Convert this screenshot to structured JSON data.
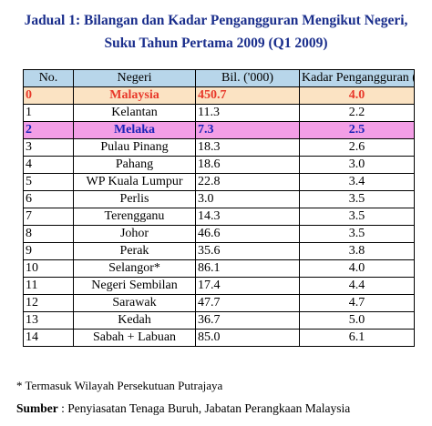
{
  "title": {
    "line1": "Jadual 1: Bilangan dan Kadar Pengangguran Mengikut Negeri,",
    "line2": "Suku Tahun Pertama  2009 (Q1 2009)"
  },
  "table": {
    "headers": [
      "No.",
      "Negeri",
      "Bil. ('000)",
      "Kadar Pengangguran (%)"
    ],
    "rows": [
      {
        "no": "0",
        "negeri": "Malaysia",
        "bil": "450.7",
        "kadar": "4.0",
        "highlight": "malaysia"
      },
      {
        "no": "1",
        "negeri": "Kelantan",
        "bil": "11.3",
        "kadar": "2.2",
        "highlight": ""
      },
      {
        "no": "2",
        "negeri": "Melaka",
        "bil": "7.3",
        "kadar": "2.5",
        "highlight": "melaka"
      },
      {
        "no": "3",
        "negeri": "Pulau Pinang",
        "bil": "18.3",
        "kadar": "2.6",
        "highlight": ""
      },
      {
        "no": "4",
        "negeri": "Pahang",
        "bil": "18.6",
        "kadar": "3.0",
        "highlight": ""
      },
      {
        "no": "5",
        "negeri": "WP Kuala Lumpur",
        "bil": "22.8",
        "kadar": "3.4",
        "highlight": ""
      },
      {
        "no": "6",
        "negeri": "Perlis",
        "bil": "3.0",
        "kadar": "3.5",
        "highlight": ""
      },
      {
        "no": "7",
        "negeri": "Terengganu",
        "bil": "14.3",
        "kadar": "3.5",
        "highlight": ""
      },
      {
        "no": "8",
        "negeri": "Johor",
        "bil": "46.6",
        "kadar": "3.5",
        "highlight": ""
      },
      {
        "no": "9",
        "negeri": "Perak",
        "bil": "35.6",
        "kadar": "3.8",
        "highlight": ""
      },
      {
        "no": "10",
        "negeri": "Selangor*",
        "bil": "86.1",
        "kadar": "4.0",
        "highlight": ""
      },
      {
        "no": "11",
        "negeri": "Negeri Sembilan",
        "bil": "17.4",
        "kadar": "4.4",
        "highlight": ""
      },
      {
        "no": "12",
        "negeri": "Sarawak",
        "bil": "47.7",
        "kadar": "4.7",
        "highlight": ""
      },
      {
        "no": "13",
        "negeri": "Kedah",
        "bil": "36.7",
        "kadar": "5.0",
        "highlight": ""
      },
      {
        "no": "14",
        "negeri": "Sabah + Labuan",
        "bil": "85.0",
        "kadar": "6.1",
        "highlight": ""
      }
    ]
  },
  "footnote": "*  Termasuk Wilayah Persekutuan Putrajaya",
  "source": {
    "label": "Sumber",
    "text": " : Penyiasatan Tenaga Buruh, Jabatan Perangkaan Malaysia"
  },
  "colors": {
    "title": "#1a2e8c",
    "header_bg": "#b8d6ea",
    "malaysia_bg": "#fbe3c3",
    "malaysia_text": "#e8382a",
    "melaka_bg": "#f39ee6",
    "melaka_text": "#1b23b8"
  }
}
